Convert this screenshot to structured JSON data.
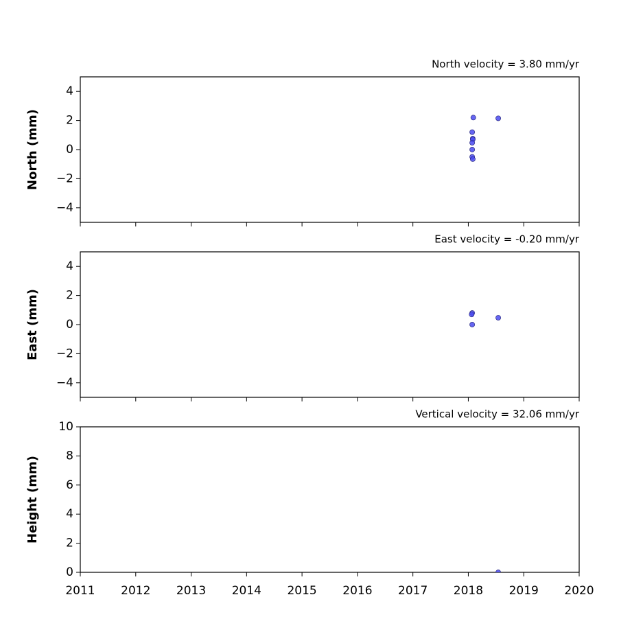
{
  "chart_data": [
    {
      "type": "scatter",
      "title": "North velocity = 3.80 mm/yr",
      "y_label": "North (mm)",
      "x": [
        2018.09,
        2018.54,
        2018.07,
        2018.08,
        2018.08,
        2018.07,
        2018.07,
        2018.07,
        2018.08
      ],
      "values": [
        2.2,
        2.15,
        1.2,
        0.75,
        0.7,
        0.47,
        0,
        -0.5,
        -0.65
      ],
      "color": "#4b4bf0",
      "xlim": [
        2011,
        2020
      ],
      "ylim": [
        -5,
        5
      ],
      "yticks": [
        {
          "value": -4,
          "label": "−4"
        },
        {
          "value": -2,
          "label": "−2"
        },
        0,
        2,
        4
      ]
    },
    {
      "type": "scatter",
      "title": "East velocity = -0.20 mm/yr",
      "y_label": "East (mm)",
      "x": [
        2018.07,
        2018.06,
        2018.07,
        2018.54
      ],
      "values": [
        0.8,
        0.7,
        0,
        0.47
      ],
      "color": "#4b4bf0",
      "xlim": [
        2011,
        2020
      ],
      "ylim": [
        -5,
        5
      ],
      "yticks": [
        {
          "value": -4,
          "label": "−4"
        },
        {
          "value": -2,
          "label": "−2"
        },
        0,
        2,
        4
      ]
    },
    {
      "type": "scatter",
      "title": "Vertical velocity = 32.06 mm/yr",
      "y_label": "Height (mm)",
      "x": [
        2018.54
      ],
      "values": [
        0
      ],
      "color": "#4b4bf0",
      "xlim": [
        2011,
        2020
      ],
      "ylim": [
        0,
        10
      ],
      "yticks": [
        0,
        2,
        4,
        6,
        8,
        10
      ],
      "xticks": [
        2011,
        2012,
        2013,
        2014,
        2015,
        2016,
        2017,
        2018,
        2019,
        2020
      ]
    }
  ]
}
